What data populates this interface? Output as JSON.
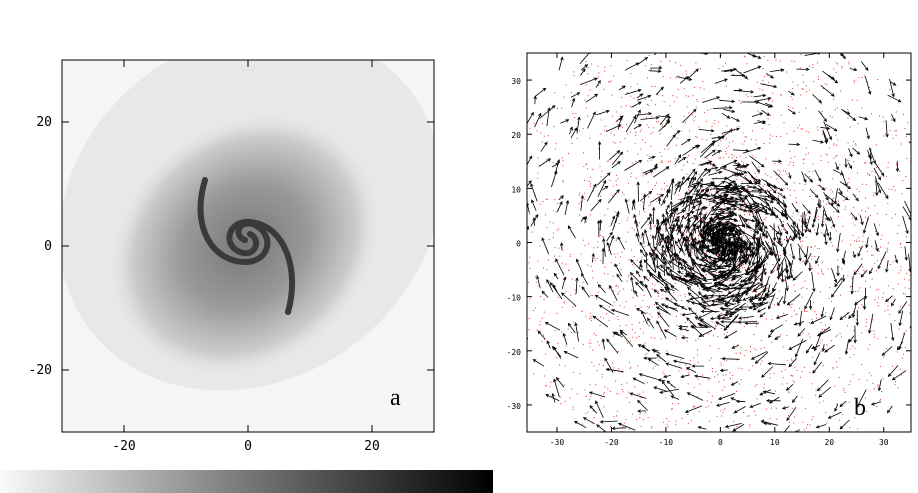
{
  "panels": [
    {
      "label": "a",
      "xlim": [
        -30,
        30
      ],
      "ylim": [
        -30,
        30
      ],
      "xticks": [
        -20,
        0,
        20
      ],
      "yticks": [
        -20,
        0,
        20
      ]
    },
    {
      "label": "b",
      "xlim": [
        -35.5,
        35
      ],
      "ylim": [
        -35,
        35
      ],
      "xticks": [
        -30,
        -20,
        -10,
        0,
        10,
        20,
        30
      ],
      "yticks": [
        -30,
        -20,
        -10,
        0,
        10,
        20,
        30
      ]
    }
  ]
}
